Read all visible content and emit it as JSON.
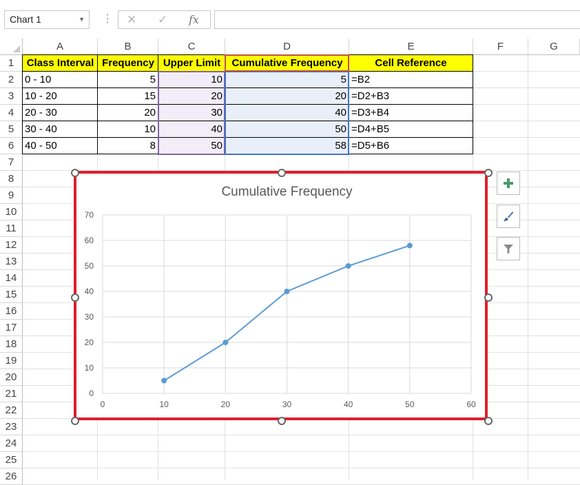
{
  "formula_bar": {
    "name_box": "Chart 1",
    "cancel_symbol": "✕",
    "enter_symbol": "✓",
    "fx_symbol": "fx",
    "formula": ""
  },
  "columns": [
    "A",
    "B",
    "C",
    "D",
    "E",
    "F",
    "G"
  ],
  "rows": [
    "1",
    "2",
    "3",
    "4",
    "5",
    "6",
    "7",
    "8",
    "9",
    "10",
    "11",
    "12",
    "13",
    "14",
    "15",
    "16",
    "17",
    "18",
    "19",
    "20",
    "21",
    "22",
    "23",
    "24",
    "25",
    "26"
  ],
  "table": {
    "headers": [
      "Class Interval",
      "Frequency",
      "Upper Limit",
      "Cumulative Frequency",
      "Cell Reference"
    ],
    "rows": [
      [
        "0 - 10",
        "5",
        "10",
        "5",
        "=B2"
      ],
      [
        "10 - 20",
        "15",
        "20",
        "20",
        "=D2+B3"
      ],
      [
        "20 - 30",
        "20",
        "30",
        "40",
        "=D3+B4"
      ],
      [
        "30 - 40",
        "10",
        "40",
        "50",
        "=D4+B5"
      ],
      [
        "40 - 50",
        "8",
        "50",
        "58",
        "=D5+B6"
      ]
    ]
  },
  "colors": {
    "header_fill": "#ffff00",
    "upper_limit_fill": "#f2edf8",
    "cumulative_fill": "#e8eff9",
    "chart_border": "#e01e2b",
    "series": "#5b9bd5"
  },
  "chart_buttons": [
    "plus-icon",
    "brush-icon",
    "filter-icon"
  ],
  "chart_data": {
    "type": "scatter",
    "title": "Cumulative Frequency",
    "x": [
      10,
      20,
      30,
      40,
      50
    ],
    "series": [
      {
        "values": [
          5,
          20,
          40,
          50,
          58
        ]
      }
    ],
    "xlim": [
      0,
      60
    ],
    "ylim": [
      0,
      70
    ],
    "x_ticks": [
      "0",
      "10",
      "20",
      "30",
      "40",
      "50",
      "60"
    ],
    "y_ticks": [
      "0",
      "10",
      "20",
      "30",
      "40",
      "50",
      "60",
      "70"
    ],
    "grid": true,
    "lines": true,
    "markers": true
  }
}
